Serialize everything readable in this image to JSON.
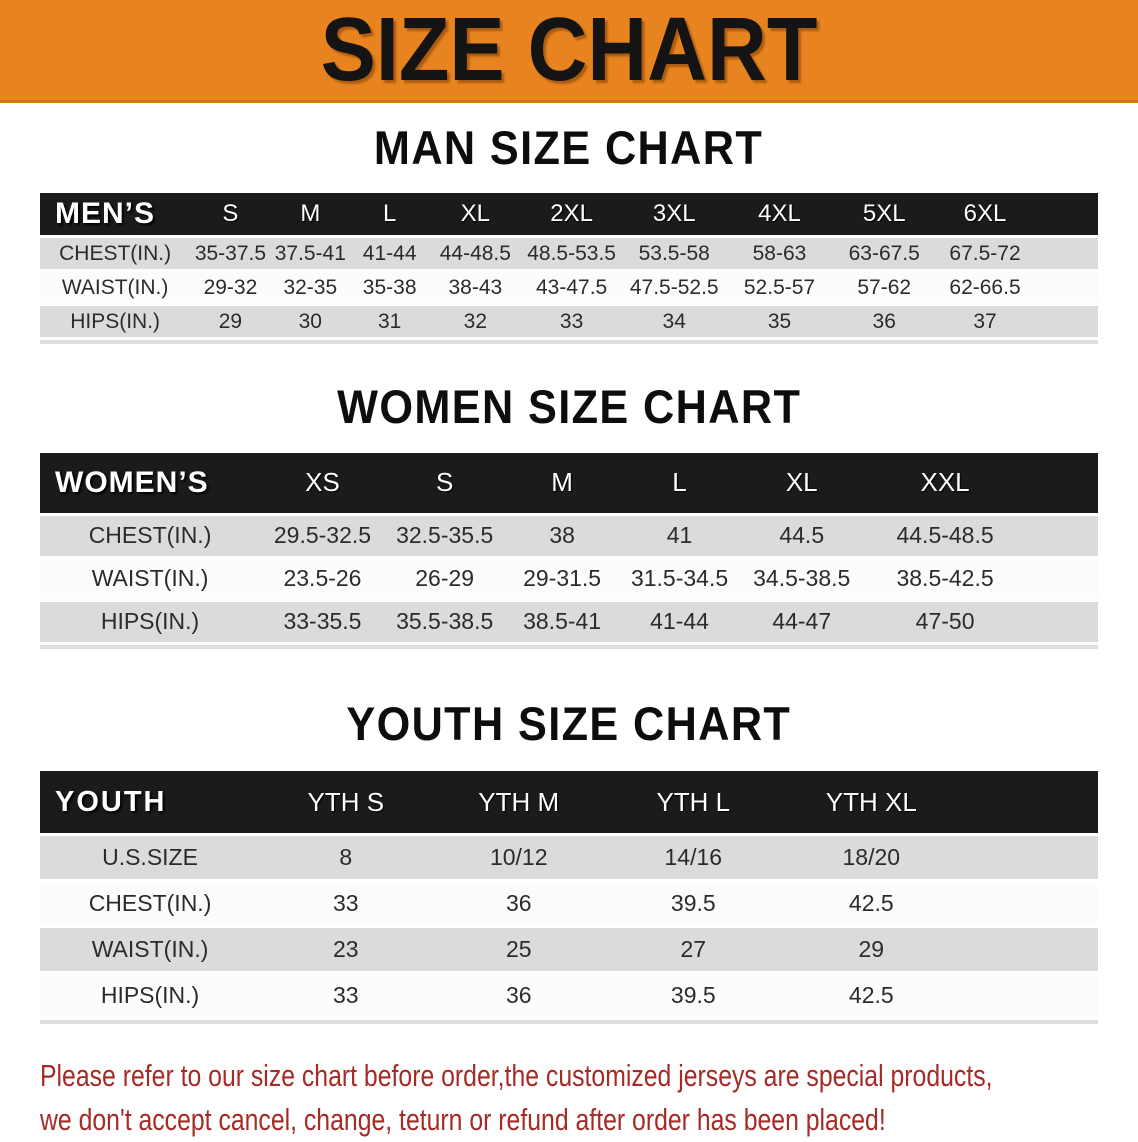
{
  "banner": {
    "title": "SIZE CHART"
  },
  "colors": {
    "banner_bg": "#E8841F",
    "banner_edge": "#D0750F",
    "banner_text": "#141414",
    "header_bg": "#1B1B1B",
    "header_text": "#FFFFFF",
    "row_gray": "#DBDBDB",
    "row_white": "#FCFCFC",
    "cell_text": "#2B2B2B",
    "footer_text": "#A52C26"
  },
  "sections": [
    {
      "heading": "MAN SIZE CHART",
      "table": {
        "label": "MEN’S",
        "sizes": [
          "S",
          "M",
          "L",
          "XL",
          "2XL",
          "3XL",
          "4XL",
          "5XL",
          "6XL"
        ],
        "rows": [
          {
            "label": "CHEST(IN.)",
            "values": [
              "35-37.5",
              "37.5-41",
              "41-44",
              "44-48.5",
              "48.5-53.5",
              "53.5-58",
              "58-63",
              "63-67.5",
              "67.5-72"
            ]
          },
          {
            "label": "WAIST(IN.)",
            "values": [
              "29-32",
              "32-35",
              "35-38",
              "38-43",
              "43-47.5",
              "47.5-52.5",
              "52.5-57",
              "57-62",
              "62-66.5"
            ]
          },
          {
            "label": "HIPS(IN.)",
            "values": [
              "29",
              "30",
              "31",
              "32",
              "33",
              "34",
              "35",
              "36",
              "37"
            ]
          }
        ]
      }
    },
    {
      "heading": "WOMEN SIZE CHART",
      "table": {
        "label": "WOMEN’S",
        "sizes": [
          "XS",
          "S",
          "M",
          "L",
          "XL",
          "XXL"
        ],
        "rows": [
          {
            "label": "CHEST(IN.)",
            "values": [
              "29.5-32.5",
              "32.5-35.5",
              "38",
              "41",
              "44.5",
              "44.5-48.5"
            ]
          },
          {
            "label": "WAIST(IN.)",
            "values": [
              "23.5-26",
              "26-29",
              "29-31.5",
              "31.5-34.5",
              "34.5-38.5",
              "38.5-42.5"
            ]
          },
          {
            "label": "HIPS(IN.)",
            "values": [
              "33-35.5",
              "35.5-38.5",
              "38.5-41",
              "41-44",
              "44-47",
              "47-50"
            ]
          }
        ]
      }
    },
    {
      "heading": "YOUTH SIZE CHART",
      "table": {
        "label": "YOUTH",
        "sizes": [
          "YTH S",
          "YTH M",
          "YTH L",
          "YTH XL"
        ],
        "rows": [
          {
            "label": "U.S.SIZE",
            "values": [
              "8",
              "10/12",
              "14/16",
              "18/20"
            ]
          },
          {
            "label": "CHEST(IN.)",
            "values": [
              "33",
              "36",
              "39.5",
              "42.5"
            ]
          },
          {
            "label": "WAIST(IN.)",
            "values": [
              "23",
              "25",
              "27",
              "29"
            ]
          },
          {
            "label": "HIPS(IN.)",
            "values": [
              "33",
              "36",
              "39.5",
              "42.5"
            ]
          }
        ]
      }
    }
  ],
  "footer": {
    "line1": "Please refer to our size chart before order,the customized jerseys are special products,",
    "line2": "we don't accept cancel, change, teturn or refund after order has been placed!"
  }
}
